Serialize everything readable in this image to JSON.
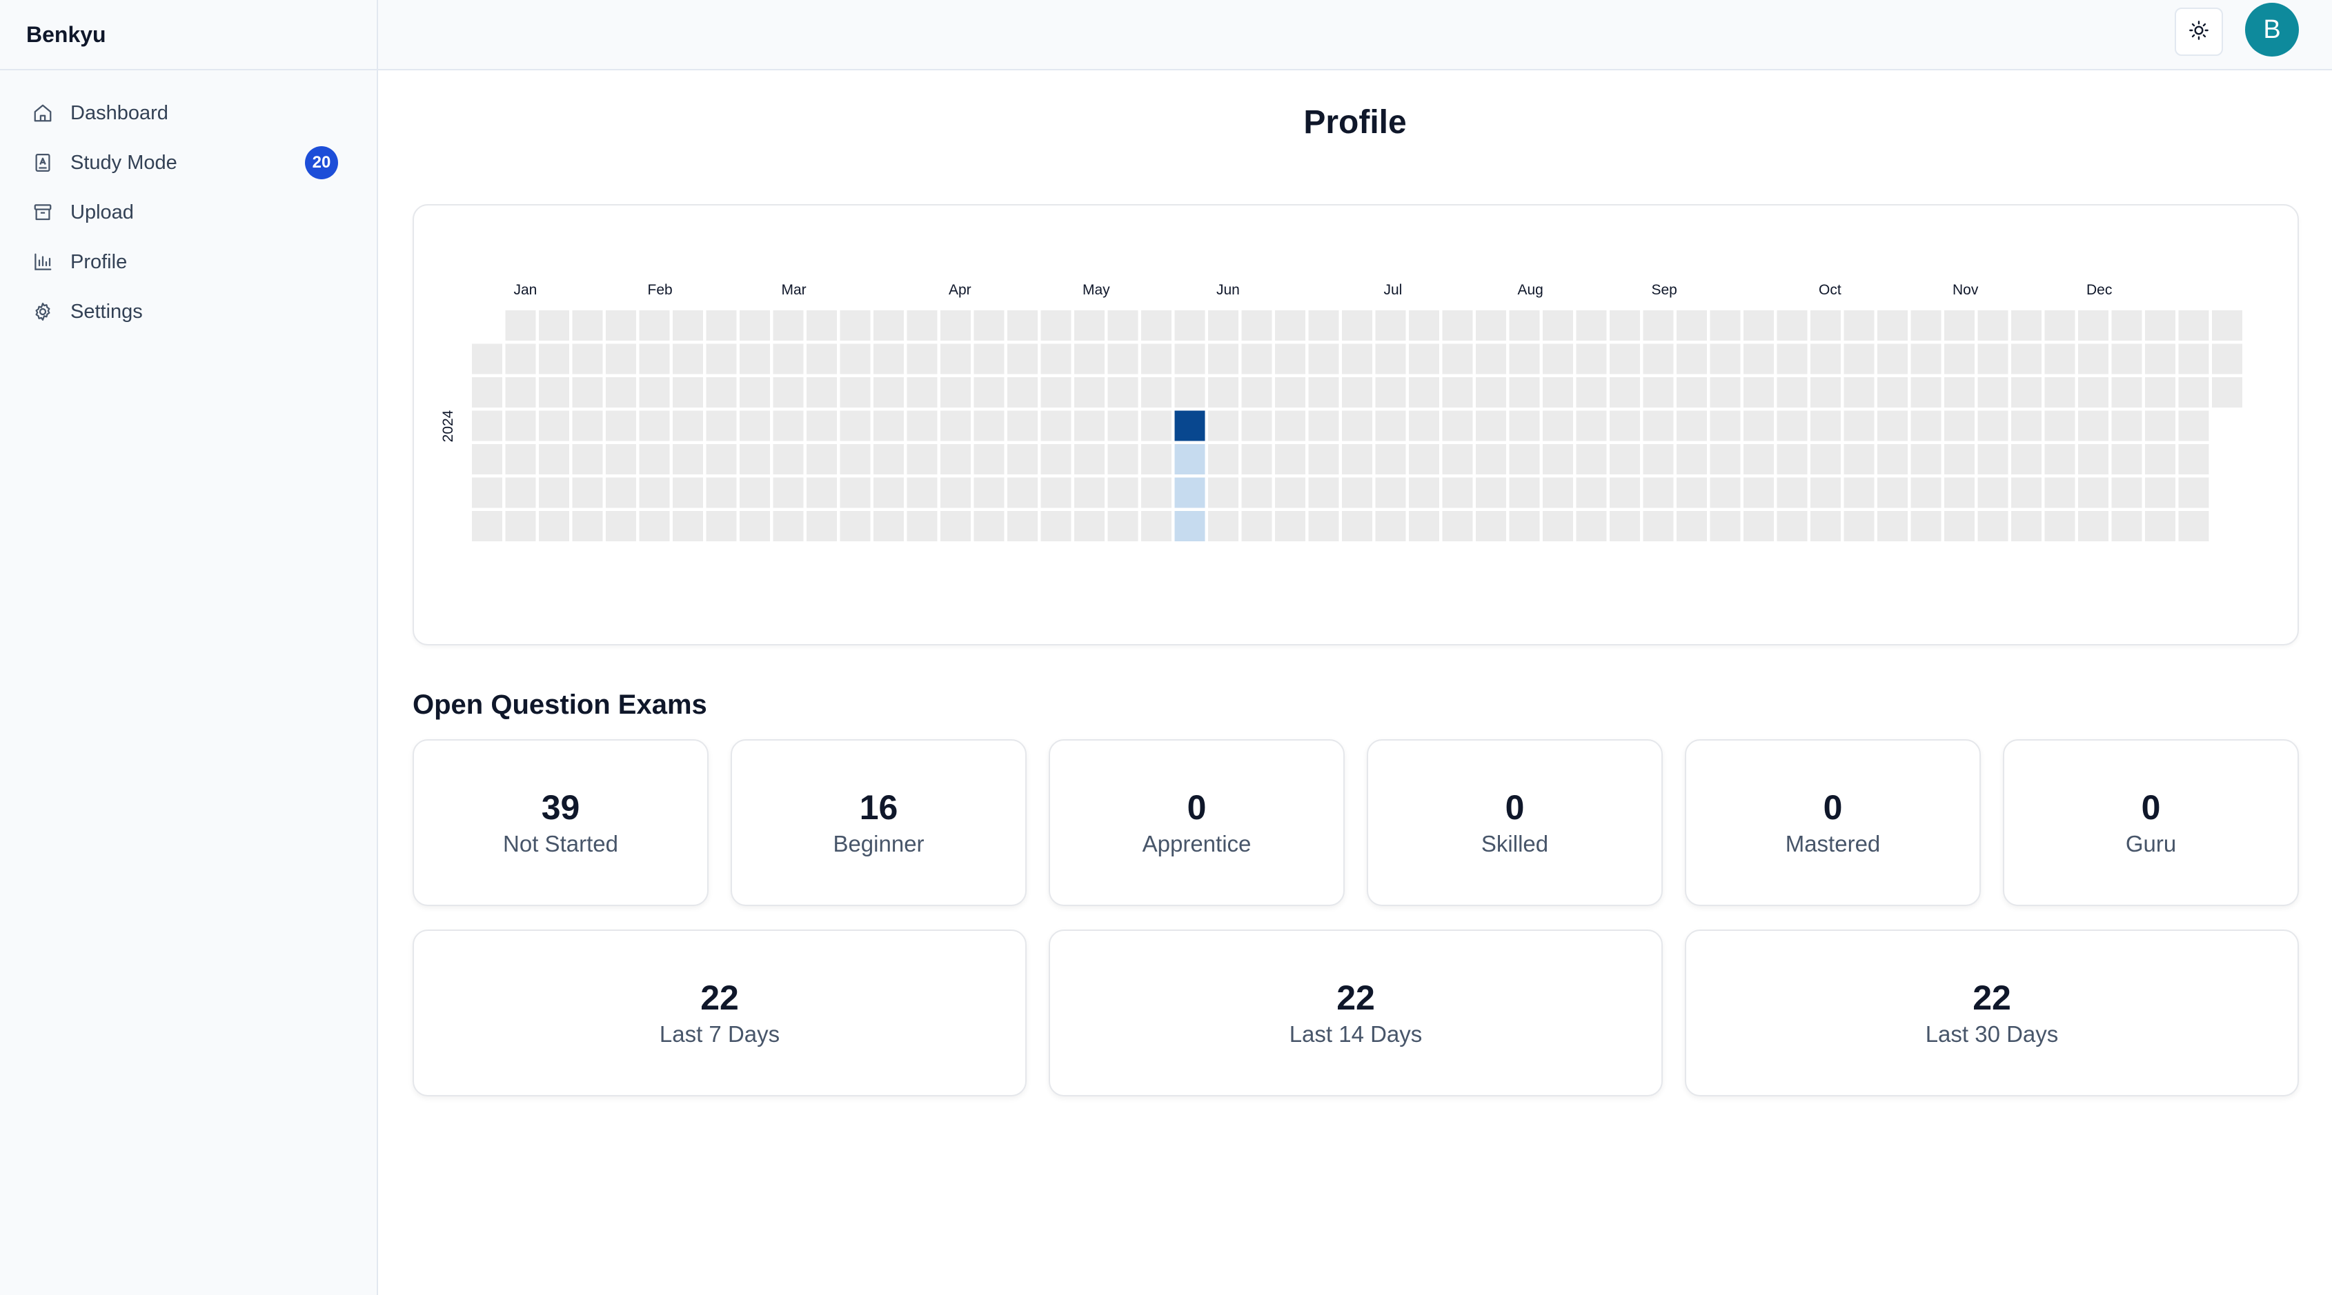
{
  "app": {
    "brand": "Benkyu"
  },
  "sidebar": {
    "items": [
      {
        "label": "Dashboard",
        "icon": "home-icon"
      },
      {
        "label": "Study Mode",
        "icon": "book-icon",
        "badge": "20"
      },
      {
        "label": "Upload",
        "icon": "archive-icon"
      },
      {
        "label": "Profile",
        "icon": "bar-chart-icon"
      },
      {
        "label": "Settings",
        "icon": "gear-icon"
      }
    ]
  },
  "header": {
    "theme_icon": "sun-icon",
    "avatar_letter": "B"
  },
  "page": {
    "title": "Profile"
  },
  "heatmap": {
    "year": "2024",
    "months": [
      "Jan",
      "Feb",
      "Mar",
      "Apr",
      "May",
      "Jun",
      "Jul",
      "Aug",
      "Sep",
      "Oct",
      "Nov",
      "Dec"
    ],
    "colors": {
      "empty": "#ebebeb",
      "low": "#c6dbef",
      "high": "#08478f"
    },
    "active_days": [
      {
        "week": 21,
        "weekday": 3,
        "level": "high"
      },
      {
        "week": 21,
        "weekday": 4,
        "level": "low"
      },
      {
        "week": 21,
        "weekday": 5,
        "level": "low"
      },
      {
        "week": 21,
        "weekday": 6,
        "level": "low"
      }
    ]
  },
  "exams": {
    "section_title": "Open Question Exams",
    "levels": [
      {
        "value": "39",
        "label": "Not Started"
      },
      {
        "value": "16",
        "label": "Beginner"
      },
      {
        "value": "0",
        "label": "Apprentice"
      },
      {
        "value": "0",
        "label": "Skilled"
      },
      {
        "value": "0",
        "label": "Mastered"
      },
      {
        "value": "0",
        "label": "Guru"
      }
    ],
    "periods": [
      {
        "value": "22",
        "label": "Last 7 Days"
      },
      {
        "value": "22",
        "label": "Last 14 Days"
      },
      {
        "value": "22",
        "label": "Last 30 Days"
      }
    ]
  }
}
